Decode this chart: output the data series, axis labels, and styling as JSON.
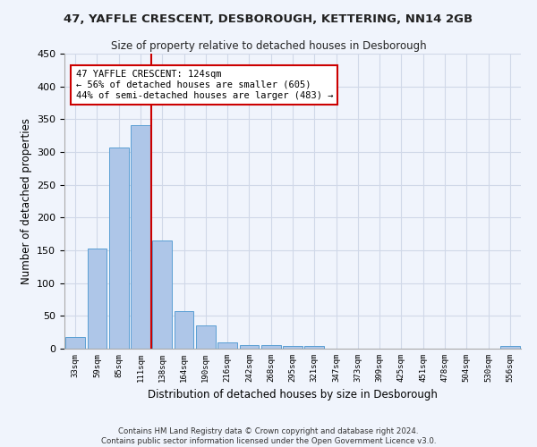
{
  "title": "47, YAFFLE CRESCENT, DESBOROUGH, KETTERING, NN14 2GB",
  "subtitle": "Size of property relative to detached houses in Desborough",
  "xlabel": "Distribution of detached houses by size in Desborough",
  "ylabel": "Number of detached properties",
  "footer_line1": "Contains HM Land Registry data © Crown copyright and database right 2024.",
  "footer_line2": "Contains public sector information licensed under the Open Government Licence v3.0.",
  "categories": [
    "33sqm",
    "59sqm",
    "85sqm",
    "111sqm",
    "138sqm",
    "164sqm",
    "190sqm",
    "216sqm",
    "242sqm",
    "268sqm",
    "295sqm",
    "321sqm",
    "347sqm",
    "373sqm",
    "399sqm",
    "425sqm",
    "451sqm",
    "478sqm",
    "504sqm",
    "530sqm",
    "556sqm"
  ],
  "values": [
    18,
    153,
    307,
    341,
    165,
    57,
    35,
    10,
    6,
    5,
    4,
    4,
    0,
    0,
    0,
    0,
    0,
    0,
    0,
    0,
    4
  ],
  "bar_color": "#aec6e8",
  "bar_edge_color": "#5a9fd4",
  "grid_color": "#d0d8e8",
  "background_color": "#f0f4fc",
  "vline_x": 3.5,
  "vline_color": "#cc0000",
  "annotation_text": "47 YAFFLE CRESCENT: 124sqm\n← 56% of detached houses are smaller (605)\n44% of semi-detached houses are larger (483) →",
  "annotation_box_color": "#ffffff",
  "annotation_box_edge": "#cc0000",
  "ylim": [
    0,
    450
  ],
  "yticks": [
    0,
    50,
    100,
    150,
    200,
    250,
    300,
    350,
    400,
    450
  ]
}
